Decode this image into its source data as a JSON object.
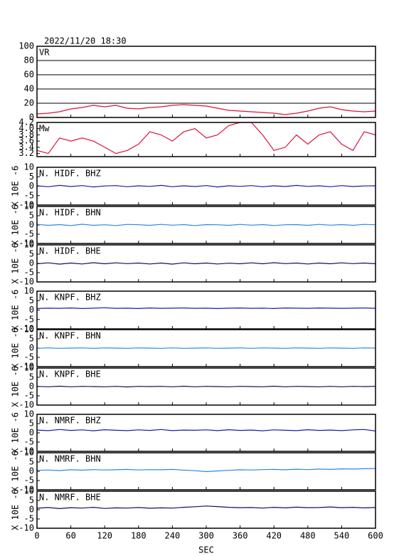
{
  "chart_data": {
    "type": "line",
    "title": "2022/11/20 18:30",
    "xlabel": "SEC",
    "xlim": [
      0,
      600
    ],
    "xticks": [
      0,
      60,
      120,
      180,
      240,
      300,
      360,
      420,
      480,
      540,
      600
    ],
    "x": [
      0,
      20,
      40,
      60,
      80,
      100,
      120,
      140,
      160,
      180,
      200,
      220,
      240,
      260,
      280,
      300,
      320,
      340,
      360,
      380,
      400,
      420,
      440,
      460,
      480,
      500,
      520,
      540,
      560,
      580,
      600
    ],
    "panels": [
      {
        "ylim": [
          0,
          100
        ],
        "yticks": [
          0,
          20,
          40,
          60,
          80,
          100
        ],
        "grid": true,
        "series": [
          {
            "name": "VR",
            "color": "#dc143c",
            "values": [
              5,
              6,
              8,
              12,
              14,
              17,
              15,
              17,
              13,
              12,
              14,
              15,
              17,
              18,
              17,
              16,
              13,
              10,
              9,
              8,
              7,
              6,
              4,
              6,
              9,
              13,
              15,
              11,
              9,
              8,
              9
            ]
          }
        ]
      },
      {
        "ylim": [
          3.1,
          4.2
        ],
        "yticks": [
          3.2,
          3.4,
          3.6,
          3.8,
          {
            "value": 4.0,
            "label": "4.0"
          },
          4.2
        ],
        "grid": false,
        "series": [
          {
            "name": "Mw",
            "color": "#dc143c",
            "values": [
              3.3,
              3.2,
              3.7,
              3.6,
              3.7,
              3.6,
              3.4,
              3.2,
              3.3,
              3.5,
              3.9,
              3.8,
              3.6,
              3.9,
              4.0,
              3.7,
              3.8,
              4.1,
              4.2,
              4.2,
              3.8,
              3.3,
              3.4,
              3.8,
              3.5,
              3.8,
              3.9,
              3.5,
              3.3,
              3.9,
              3.8
            ]
          }
        ]
      },
      {
        "ylabel": "X 10E -6",
        "ylim": [
          -10,
          10
        ],
        "yticks": [
          -10,
          -5,
          0,
          5,
          10
        ],
        "grid": false,
        "series": [
          {
            "name": "N. HIDF. BHZ",
            "color": "#1a1ab4",
            "values": [
              0.2,
              -0.3,
              0.4,
              -0.2,
              0.3,
              -0.4,
              0.1,
              0.3,
              -0.3,
              0.2,
              -0.1,
              0.4,
              -0.3,
              0.2,
              -0.2,
              0.3,
              -0.4,
              0.2,
              -0.1,
              0.3,
              -0.3,
              0.2,
              -0.2,
              0.4,
              -0.1,
              0.2,
              -0.3,
              0.3,
              -0.2,
              0.1,
              0.2
            ]
          }
        ]
      },
      {
        "ylabel": "X 10E -6",
        "ylim": [
          -10,
          10
        ],
        "yticks": [
          -10,
          -5,
          0,
          5,
          10
        ],
        "grid": false,
        "series": [
          {
            "name": "N. HIDF. BHN",
            "color": "#2a8ae6",
            "values": [
              0.3,
              -0.2,
              0.2,
              -0.3,
              0.4,
              -0.2,
              0.1,
              -0.3,
              0.3,
              0.1,
              -0.2,
              0.3,
              -0.1,
              0.2,
              -0.3,
              0.2,
              0.1,
              -0.2,
              0.3,
              -0.1,
              0.2,
              -0.3,
              0.1,
              0.2,
              -0.2,
              0.3,
              -0.1,
              0.2,
              -0.2,
              0.3,
              0.1
            ]
          }
        ]
      },
      {
        "ylabel": "X 10E -6",
        "ylim": [
          -10,
          10
        ],
        "yticks": [
          -10,
          -5,
          0,
          5,
          10
        ],
        "grid": false,
        "series": [
          {
            "name": "N. HIDF. BHE",
            "color": "#101060",
            "values": [
              -0.2,
              0.3,
              -0.4,
              0.2,
              -0.3,
              0.4,
              -0.2,
              0.3,
              -0.1,
              0.2,
              -0.3,
              0.2,
              -0.4,
              0.3,
              -0.2,
              0.2,
              -0.3,
              0.1,
              -0.2,
              0.3,
              -0.2,
              0.4,
              -0.1,
              0.2,
              -0.3,
              0.2,
              -0.2,
              0.3,
              -0.1,
              0.2,
              -0.2
            ]
          }
        ]
      },
      {
        "ylabel": "X 10E -6",
        "ylim": [
          -10,
          10
        ],
        "yticks": [
          -10,
          -5,
          0,
          5,
          10
        ],
        "grid": false,
        "series": [
          {
            "name": "N. KNPF. BHZ",
            "color": "#1a1ab4",
            "values": [
              0.8,
              1.0,
              0.9,
              1.1,
              0.8,
              1.0,
              1.2,
              0.9,
              1.0,
              0.8,
              1.1,
              0.9,
              1.0,
              1.1,
              0.9,
              1.0,
              0.8,
              1.0,
              1.1,
              0.9,
              1.0,
              0.8,
              1.1,
              1.0,
              0.9,
              1.1,
              1.0,
              0.9,
              1.0,
              1.1,
              0.9
            ]
          }
        ]
      },
      {
        "ylabel": "X 10E -6",
        "ylim": [
          -10,
          10
        ],
        "yticks": [
          -10,
          -5,
          0,
          5,
          10
        ],
        "grid": false,
        "series": [
          {
            "name": "N. KNPF. BHN",
            "color": "#2a8ae6",
            "values": [
              -0.1,
              0.1,
              -0.1,
              0.0,
              0.1,
              -0.1,
              0.1,
              0.0,
              -0.1,
              0.1,
              0.0,
              -0.1,
              0.1,
              -0.1,
              0.0,
              0.1,
              -0.1,
              0.0,
              0.1,
              -0.1,
              0.1,
              0.0,
              -0.1,
              0.1,
              0.0,
              -0.1,
              0.1,
              0.0,
              -0.1,
              0.1,
              0.0
            ]
          }
        ]
      },
      {
        "ylabel": "X 10E -6",
        "ylim": [
          -10,
          10
        ],
        "yticks": [
          -10,
          -5,
          0,
          5,
          10
        ],
        "grid": false,
        "series": [
          {
            "name": "N. KNPF. BHE",
            "color": "#101060",
            "values": [
              0.1,
              -0.1,
              0.2,
              -0.1,
              0.1,
              0.0,
              -0.1,
              0.1,
              -0.2,
              0.1,
              0.0,
              0.1,
              -0.1,
              0.2,
              -0.1,
              0.1,
              0.0,
              -0.1,
              0.1,
              0.0,
              -0.1,
              0.2,
              -0.1,
              0.1,
              0.0,
              -0.1,
              0.1,
              -0.1,
              0.1,
              0.0,
              0.1
            ]
          }
        ]
      },
      {
        "ylabel": "X 10E -6",
        "ylim": [
          -10,
          10
        ],
        "yticks": [
          -10,
          -5,
          0,
          5,
          10
        ],
        "grid": false,
        "series": [
          {
            "name": "N. NMRF. BHZ",
            "color": "#1a1ab4",
            "values": [
              1.5,
              1.2,
              1.8,
              1.3,
              1.6,
              1.1,
              1.7,
              1.4,
              1.2,
              1.6,
              1.3,
              1.8,
              1.2,
              1.5,
              1.4,
              1.6,
              1.2,
              1.7,
              1.3,
              1.5,
              1.1,
              1.6,
              1.4,
              1.2,
              1.7,
              1.3,
              1.5,
              1.2,
              1.6,
              1.8,
              1.0
            ]
          }
        ]
      },
      {
        "ylabel": "X 10E -6",
        "ylim": [
          -10,
          10
        ],
        "yticks": [
          -10,
          -5,
          0,
          5,
          10
        ],
        "grid": false,
        "series": [
          {
            "name": "N. NMRF. BHN",
            "color": "#2a8ae6",
            "values": [
              0.5,
              0.7,
              0.4,
              0.8,
              0.6,
              0.9,
              0.7,
              0.8,
              1.0,
              0.7,
              0.9,
              0.8,
              1.0,
              0.6,
              0.3,
              -0.2,
              0.2,
              0.5,
              0.8,
              0.7,
              0.9,
              1.0,
              0.8,
              1.1,
              0.9,
              1.2,
              1.0,
              1.3,
              1.2,
              1.4,
              1.5
            ]
          }
        ]
      },
      {
        "ylabel": "X 10E -6",
        "ylim": [
          -10,
          10
        ],
        "yticks": [
          -10,
          -5,
          0,
          5,
          10
        ],
        "grid": false,
        "series": [
          {
            "name": "N. NMRF. BHE",
            "color": "#101060",
            "values": [
              0.8,
              1.2,
              0.6,
              1.1,
              0.9,
              1.3,
              0.7,
              1.0,
              0.9,
              1.2,
              0.8,
              1.0,
              0.9,
              1.3,
              1.6,
              2.0,
              1.7,
              1.3,
              1.1,
              1.2,
              0.9,
              1.3,
              1.0,
              1.4,
              1.1,
              1.2,
              1.5,
              1.1,
              1.3,
              1.0,
              1.2
            ]
          }
        ]
      }
    ]
  }
}
